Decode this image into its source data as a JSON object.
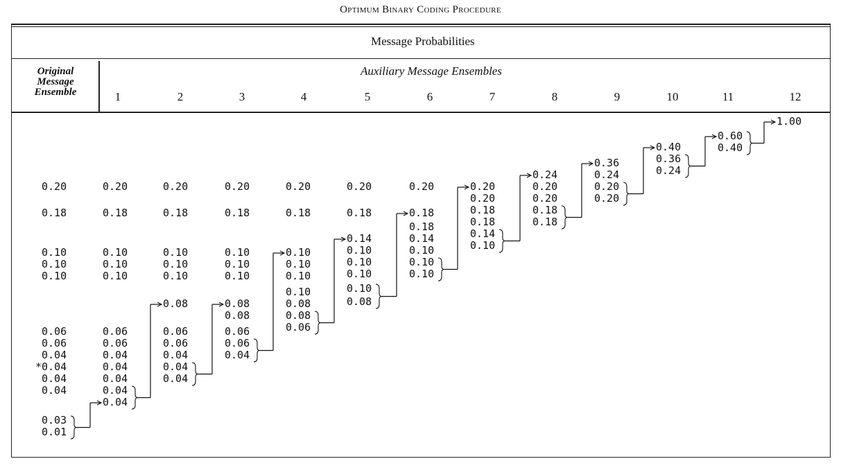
{
  "title": "Optimum Binary Coding Procedure",
  "header": {
    "probabilities": "Message Probabilities",
    "original": [
      "Original",
      "Message",
      "Ensemble"
    ],
    "auxiliary": "Auxiliary Message Ensembles",
    "columns": [
      "1",
      "2",
      "3",
      "4",
      "5",
      "6",
      "7",
      "8",
      "9",
      "10",
      "11",
      "12"
    ]
  },
  "original_ensemble": [
    "0.20",
    "0.18",
    "0.10",
    "0.10",
    "0.10",
    "0.06",
    "0.06",
    "0.04",
    "*0.04",
    "0.04",
    "0.04",
    "0.03",
    "0.01"
  ],
  "auxiliary_ensembles": [
    [
      "0.20",
      "0.18",
      "0.10",
      "0.10",
      "0.10",
      "0.06",
      "0.06",
      "0.04",
      "0.04",
      "0.04",
      "0.04",
      "0.04"
    ],
    [
      "0.20",
      "0.18",
      "0.10",
      "0.10",
      "0.10",
      "0.08",
      "0.06",
      "0.06",
      "0.04",
      "0.04",
      "0.04"
    ],
    [
      "0.20",
      "0.18",
      "0.10",
      "0.10",
      "0.10",
      "0.08",
      "0.08",
      "0.06",
      "0.06",
      "0.04"
    ],
    [
      "0.20",
      "0.18",
      "0.10",
      "0.10",
      "0.10",
      "0.10",
      "0.08",
      "0.08",
      "0.06"
    ],
    [
      "0.20",
      "0.18",
      "0.14",
      "0.10",
      "0.10",
      "0.10",
      "0.10",
      "0.08"
    ],
    [
      "0.20",
      "0.18",
      "0.18",
      "0.14",
      "0.10",
      "0.10",
      "0.10"
    ],
    [
      "0.20",
      "0.20",
      "0.18",
      "0.18",
      "0.14",
      "0.10"
    ],
    [
      "0.24",
      "0.20",
      "0.20",
      "0.18",
      "0.18"
    ],
    [
      "0.36",
      "0.24",
      "0.20",
      "0.20"
    ],
    [
      "0.40",
      "0.36",
      "0.24"
    ],
    [
      "0.60",
      "0.40"
    ],
    [
      "1.00"
    ]
  ]
}
